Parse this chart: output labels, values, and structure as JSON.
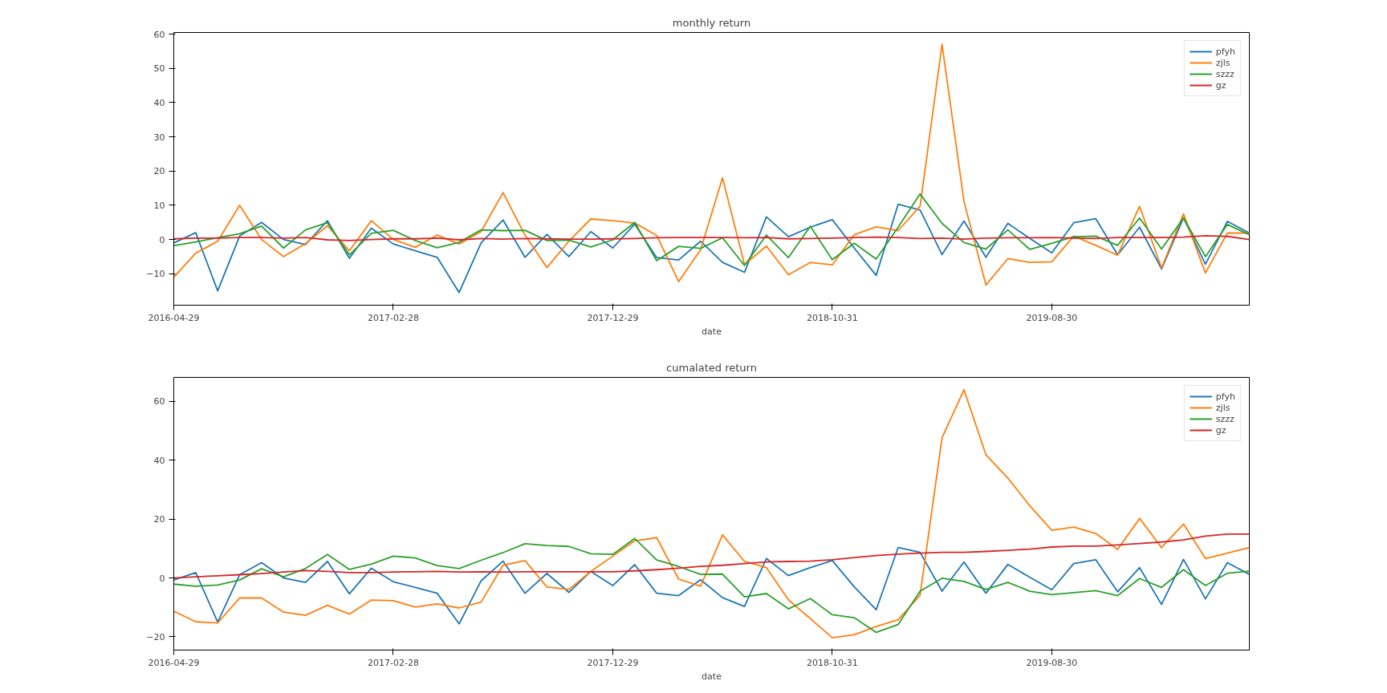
{
  "chart_data": [
    {
      "type": "line",
      "title": "monthly return",
      "xlabel": "date",
      "categories": [
        "2016-04-29",
        null,
        null,
        null,
        null,
        null,
        null,
        null,
        null,
        null,
        "2017-02-28",
        null,
        null,
        null,
        null,
        null,
        null,
        null,
        null,
        null,
        "2017-12-29",
        null,
        null,
        null,
        null,
        null,
        null,
        null,
        null,
        null,
        "2018-10-31",
        null,
        null,
        null,
        null,
        null,
        null,
        null,
        null,
        null,
        "2019-08-30",
        null,
        null,
        null,
        null,
        null,
        null,
        null,
        null,
        null
      ],
      "ylim": [
        -19.2,
        60.5
      ],
      "yticks": [
        -10,
        0,
        10,
        20,
        30,
        40,
        50,
        60
      ],
      "grid": false,
      "legend": "top right",
      "line_style": "solid",
      "series": [
        {
          "name": "pfyh",
          "color": "#1f77b4",
          "values": [
            -1,
            2,
            -15,
            1,
            5,
            0,
            -1.5,
            5.5,
            -5.5,
            3.3,
            -1.3,
            -3.3,
            -5.2,
            -15.5,
            -1,
            5.7,
            -5.2,
            1.5,
            -5,
            2.3,
            -2.5,
            4.5,
            -5.3,
            -6,
            -0.5,
            -6.7,
            -9.6,
            6.6,
            0.8,
            3.6,
            5.8,
            -2.5,
            -10.5,
            10.3,
            8.6,
            -4.4,
            5.4,
            -5.2,
            4.7,
            0.3,
            -3.9,
            4.9,
            6.1,
            -4.5,
            3.6,
            -8.6,
            6.3,
            -7.2,
            5.3,
            1.9
          ]
        },
        {
          "name": "zjls",
          "color": "#ff7f0e",
          "values": [
            -11,
            -4,
            -0.5,
            10,
            0,
            -5,
            -1.2,
            4,
            -3.3,
            5.5,
            0,
            -2.3,
            1.3,
            -1.3,
            2.3,
            13.7,
            1.3,
            -8.2,
            -0.5,
            6,
            5.5,
            4.8,
            1.2,
            -12.3,
            -3,
            18,
            -7.3,
            -1.9,
            -10.3,
            -6.7,
            -7.4,
            1.4,
            3.7,
            2.6,
            9.7,
            57,
            11.1,
            -13.3,
            -5.6,
            -6.7,
            -6.5,
            1,
            -1.7,
            -4.6,
            9.7,
            -8.3,
            7.5,
            -9.8,
            1.9,
            1.9
          ]
        },
        {
          "name": "szzz",
          "color": "#2ca02c",
          "values": [
            -1.8,
            -0.7,
            0.5,
            1.7,
            3.9,
            -2.5,
            2.8,
            4.9,
            -4.5,
            1.8,
            2.7,
            -0.3,
            -2.4,
            -0.8,
            2.8,
            2.6,
            2.7,
            -0.3,
            -0.2,
            -2.2,
            -0.1,
            5,
            -6.2,
            -2,
            -2.6,
            0.5,
            -7.6,
            1.3,
            -5.3,
            3.9,
            -5.9,
            -1.1,
            -5.7,
            3.6,
            13.3,
            4.7,
            -0.9,
            -2.8,
            2.8,
            -2.9,
            -1.1,
            0.8,
            1,
            -1.7,
            6.3,
            -2.8,
            6.3,
            -5,
            4.4,
            1.4
          ]
        },
        {
          "name": "gz",
          "color": "#d62728",
          "values": [
            0.2,
            0.4,
            0.4,
            0.6,
            0.6,
            0.4,
            0.6,
            -0.1,
            -0.3,
            0,
            0.2,
            0.2,
            0.4,
            -0.1,
            0.3,
            0.1,
            0.3,
            0.2,
            0.1,
            0.1,
            0.2,
            0.3,
            0.5,
            0.6,
            0.6,
            0.6,
            0.5,
            0.6,
            0.2,
            0.3,
            0.4,
            0.6,
            0.7,
            0.6,
            0.3,
            0.4,
            0.1,
            0.4,
            0.5,
            0.5,
            0.6,
            0.4,
            0.3,
            0.6,
            0.6,
            0.6,
            0.7,
            1.1,
            0.9,
            0
          ]
        }
      ]
    },
    {
      "type": "line",
      "title": "cumalated return",
      "xlabel": "date",
      "categories": [
        "2016-04-29",
        null,
        null,
        null,
        null,
        null,
        null,
        null,
        null,
        null,
        "2017-02-28",
        null,
        null,
        null,
        null,
        null,
        null,
        null,
        null,
        null,
        "2017-12-29",
        null,
        null,
        null,
        null,
        null,
        null,
        null,
        null,
        null,
        "2018-10-31",
        null,
        null,
        null,
        null,
        null,
        null,
        null,
        null,
        null,
        "2019-08-30",
        null,
        null,
        null,
        null,
        null,
        null,
        null,
        null,
        null
      ],
      "ylim": [
        -24.5,
        68.1
      ],
      "yticks": [
        -20,
        0,
        20,
        40,
        60
      ],
      "grid": false,
      "legend": "top right",
      "line_style": "solid",
      "series": [
        {
          "name": "pfyh",
          "color": "#1f77b4",
          "values": [
            -0.7,
            1.8,
            -15,
            1.1,
            5.2,
            0,
            -1.5,
            5.6,
            -5.4,
            3.3,
            -1.3,
            -3.2,
            -5.2,
            -15.6,
            -1,
            5.7,
            -5.2,
            1.5,
            -4.9,
            2.2,
            -2.6,
            4.5,
            -5.2,
            -6,
            -0.6,
            -6.7,
            -9.7,
            6.6,
            0.8,
            3.5,
            5.9,
            -3,
            -10.8,
            10.3,
            8.7,
            -4.5,
            5.4,
            -5.2,
            4.6,
            0.2,
            -4,
            4.9,
            6.2,
            -4.7,
            3.5,
            -9,
            6.3,
            -7.1,
            5.2,
            1.2
          ]
        },
        {
          "name": "zjls",
          "color": "#ff7f0e",
          "values": [
            -11.3,
            -14.9,
            -15.3,
            -6.8,
            -6.8,
            -11.6,
            -12.7,
            -9.3,
            -12.3,
            -7.5,
            -7.7,
            -9.9,
            -8.8,
            -10.2,
            -8.2,
            4.3,
            5.9,
            -3.1,
            -3.9,
            2.2,
            7.4,
            12.6,
            13.7,
            -0.4,
            -2.8,
            14.6,
            5.6,
            3.5,
            -7.4,
            -13.8,
            -20.3,
            -19.3,
            -16.5,
            -14.2,
            -5.9,
            47.6,
            63.9,
            41.8,
            33.9,
            24.5,
            16.2,
            17.3,
            15.1,
            9.7,
            20.2,
            10.3,
            18.3,
            6.6,
            8.4,
            10.3
          ]
        },
        {
          "name": "szzz",
          "color": "#2ca02c",
          "values": [
            -2.1,
            -2.8,
            -2.4,
            -0.7,
            3.1,
            0.4,
            3.2,
            8,
            2.9,
            4.7,
            7.4,
            6.8,
            4.2,
            3.2,
            6,
            8.6,
            11.6,
            11,
            10.7,
            8.2,
            8,
            13.4,
            6.1,
            3.9,
            1.2,
            1.3,
            -6.4,
            -5.3,
            -10.5,
            -7,
            -12.5,
            -13.5,
            -18.5,
            -15.8,
            -4.5,
            -0.1,
            -1.2,
            -3.9,
            -1.5,
            -4.5,
            -5.7,
            -5,
            -4.3,
            -6,
            -0.2,
            -3.2,
            2.8,
            -2.6,
            1.6,
            2.3
          ]
        },
        {
          "name": "gz",
          "color": "#d62728",
          "values": [
            0,
            0.4,
            0.7,
            1.1,
            1.5,
            2,
            2.5,
            2.2,
            1.8,
            1.8,
            2,
            2.1,
            2.2,
            2,
            2.1,
            2,
            2.1,
            2.1,
            2.1,
            2.1,
            2.1,
            2.4,
            2.8,
            3.3,
            3.9,
            4.3,
            4.9,
            5.4,
            5.6,
            5.7,
            6.2,
            6.9,
            7.6,
            8.1,
            8.4,
            8.7,
            8.7,
            9,
            9.4,
            9.8,
            10.5,
            10.8,
            10.8,
            11.2,
            11.7,
            12.2,
            12.9,
            14.2,
            14.9,
            14.9
          ]
        }
      ]
    }
  ]
}
